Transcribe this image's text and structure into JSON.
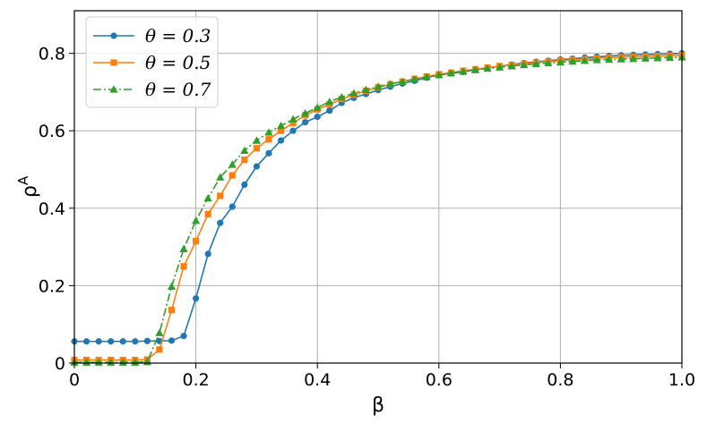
{
  "chart_data": {
    "type": "line",
    "xlabel": "β",
    "ylabel_base": "ρ",
    "ylabel_sup": "A",
    "xlim": [
      0,
      1.0
    ],
    "ylim": [
      0,
      0.91
    ],
    "grid": true,
    "legend_position": "top-left",
    "xticks": [
      {
        "value": 0,
        "label": "0"
      },
      {
        "value": 0.2,
        "label": "0.2"
      },
      {
        "value": 0.4,
        "label": "0.4"
      },
      {
        "value": 0.6,
        "label": "0.6"
      },
      {
        "value": 0.8,
        "label": "0.8"
      },
      {
        "value": 1.0,
        "label": "1.0"
      }
    ],
    "yticks": [
      {
        "value": 0,
        "label": "0"
      },
      {
        "value": 0.2,
        "label": "0.2"
      },
      {
        "value": 0.4,
        "label": "0.4"
      },
      {
        "value": 0.6,
        "label": "0.6"
      },
      {
        "value": 0.8,
        "label": "0.8"
      }
    ],
    "x": [
      0,
      0.02,
      0.04,
      0.06,
      0.08,
      0.1,
      0.12,
      0.14,
      0.16,
      0.18,
      0.2,
      0.22,
      0.24,
      0.26,
      0.28,
      0.3,
      0.32,
      0.34,
      0.36,
      0.38,
      0.4,
      0.42,
      0.44,
      0.46,
      0.48,
      0.5,
      0.52,
      0.54,
      0.56,
      0.58,
      0.6,
      0.62,
      0.64,
      0.66,
      0.68,
      0.7,
      0.72,
      0.74,
      0.76,
      0.78,
      0.8,
      0.82,
      0.84,
      0.86,
      0.88,
      0.9,
      0.92,
      0.94,
      0.96,
      0.98,
      1.0
    ],
    "series": [
      {
        "name": "θ = 0.3",
        "color": "#1f77b4",
        "marker": "circle",
        "linestyle": "solid",
        "values": [
          0.056,
          0.056,
          0.056,
          0.056,
          0.056,
          0.056,
          0.057,
          0.057,
          0.058,
          0.07,
          0.167,
          0.282,
          0.362,
          0.404,
          0.461,
          0.508,
          0.542,
          0.575,
          0.6,
          0.622,
          0.636,
          0.652,
          0.672,
          0.685,
          0.695,
          0.705,
          0.714,
          0.722,
          0.729,
          0.737,
          0.744,
          0.748,
          0.752,
          0.758,
          0.762,
          0.767,
          0.771,
          0.775,
          0.778,
          0.781,
          0.784,
          0.786,
          0.789,
          0.791,
          0.793,
          0.795,
          0.796,
          0.797,
          0.798,
          0.799,
          0.8
        ]
      },
      {
        "name": "θ = 0.5",
        "color": "#ff7f0e",
        "marker": "square",
        "linestyle": "solid",
        "values": [
          0.008,
          0.008,
          0.008,
          0.008,
          0.008,
          0.008,
          0.009,
          0.035,
          0.137,
          0.25,
          0.315,
          0.385,
          0.432,
          0.485,
          0.525,
          0.555,
          0.578,
          0.6,
          0.62,
          0.64,
          0.655,
          0.668,
          0.682,
          0.693,
          0.703,
          0.712,
          0.72,
          0.727,
          0.734,
          0.74,
          0.746,
          0.75,
          0.755,
          0.759,
          0.763,
          0.767,
          0.77,
          0.773,
          0.776,
          0.779,
          0.781,
          0.783,
          0.785,
          0.787,
          0.789,
          0.79,
          0.791,
          0.792,
          0.793,
          0.794,
          0.795
        ]
      },
      {
        "name": "θ = 0.7",
        "color": "#2ca02c",
        "marker": "triangle",
        "linestyle": "dashdot",
        "values": [
          0.002,
          0.002,
          0.002,
          0.002,
          0.002,
          0.002,
          0.003,
          0.078,
          0.198,
          0.295,
          0.368,
          0.426,
          0.48,
          0.513,
          0.549,
          0.575,
          0.596,
          0.613,
          0.63,
          0.645,
          0.66,
          0.675,
          0.687,
          0.697,
          0.706,
          0.714,
          0.721,
          0.727,
          0.733,
          0.739,
          0.744,
          0.749,
          0.753,
          0.757,
          0.761,
          0.764,
          0.767,
          0.77,
          0.773,
          0.775,
          0.777,
          0.779,
          0.781,
          0.783,
          0.784,
          0.785,
          0.786,
          0.787,
          0.788,
          0.789,
          0.79
        ]
      }
    ]
  }
}
